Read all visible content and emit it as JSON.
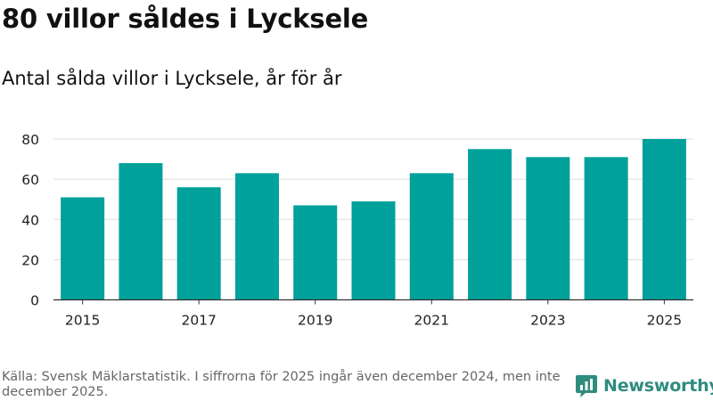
{
  "header": {
    "title": "80 villor såldes i Lycksele",
    "subtitle": "Antal sålda villor i Lycksele, år för år"
  },
  "footer": {
    "source": "Källa: Svensk Mäklarstatistik. I siffrorna för 2025 ingår även december 2024, men inte december 2025.",
    "brand": "Newsworthy"
  },
  "colors": {
    "bar": "#00a19a",
    "grid": "#dddddd",
    "axis": "#333333",
    "brand": "#2f8c7e"
  },
  "chart_data": {
    "type": "bar",
    "title": "Antal sålda villor i Lycksele, år för år",
    "xlabel": "",
    "ylabel": "",
    "categories": [
      "2015",
      "2016",
      "2017",
      "2018",
      "2019",
      "2020",
      "2021",
      "2022",
      "2023",
      "2024",
      "2025"
    ],
    "values": [
      51,
      68,
      56,
      63,
      47,
      49,
      63,
      75,
      71,
      71,
      80
    ],
    "ylim": [
      0,
      80
    ],
    "yticks": [
      0,
      20,
      40,
      60,
      80
    ],
    "xtick_labels": [
      "2015",
      "2017",
      "2019",
      "2021",
      "2023",
      "2025"
    ],
    "grid": true,
    "legend": "none"
  }
}
